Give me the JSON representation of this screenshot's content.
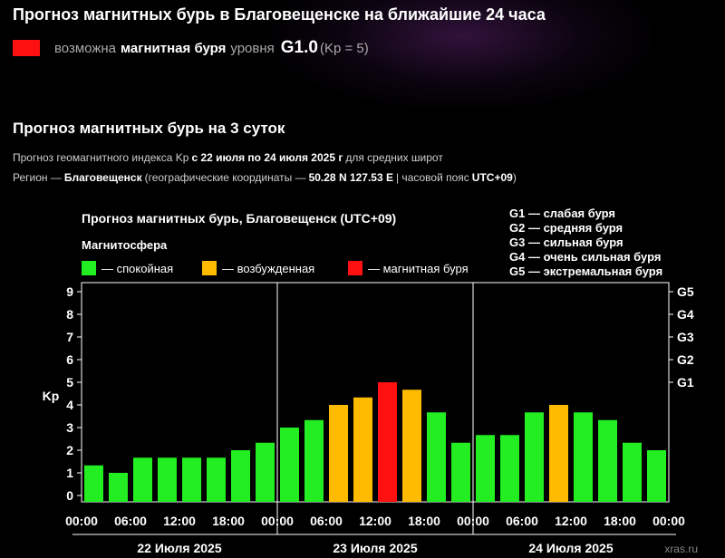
{
  "header": {
    "title": "Прогноз магнитных бурь в Благовещенске на ближайшие 24 часа",
    "alert_color": "#ff1010",
    "alert_prefix": "возможна",
    "alert_bold": "магнитная буря",
    "alert_level_word": "уровня",
    "alert_level": "G1.0",
    "alert_kp": "(Kp = 5)"
  },
  "section": {
    "title": "Прогноз магнитных бурь на 3 суток",
    "line1_prefix": "Прогноз геомагнитного индекса Kp",
    "line1_bold": "с 22 июля по 24 июля 2025 г",
    "line1_suffix": "для средних широт",
    "line2_prefix": "Регион —",
    "line2_region": "Благовещенск",
    "line2_mid": "(географические координаты —",
    "line2_coords": "50.28 N 127.53 E",
    "line2_tz_label": "| часовой пояс",
    "line2_tz": "UTC+09",
    "line2_end": ")"
  },
  "chart_data": {
    "type": "bar",
    "title": "Прогноз магнитных бурь, Благовещенск (UTC+09)",
    "legend_title": "Магнитосфера",
    "legend": [
      {
        "label": "— спокойная",
        "color": "#22ee22"
      },
      {
        "label": "— возбужденная",
        "color": "#ffbb00"
      },
      {
        "label": "— магнитная буря",
        "color": "#ff1111"
      }
    ],
    "g_legend": [
      "G1 — слабая буря",
      "G2 — средняя буря",
      "G3 — сильная буря",
      "G4 — очень сильная буря",
      "G5 — экстремальная буря"
    ],
    "ylabel": "Kp",
    "ylim": [
      0,
      9
    ],
    "y_ticks": [
      "0",
      "1",
      "2",
      "3",
      "4",
      "5",
      "6",
      "7",
      "8",
      "9"
    ],
    "right_ticks": [
      {
        "label": "G1",
        "kp": 5
      },
      {
        "label": "G2",
        "kp": 6
      },
      {
        "label": "G3",
        "kp": 7
      },
      {
        "label": "G4",
        "kp": 8
      },
      {
        "label": "G5",
        "kp": 9
      }
    ],
    "days": [
      "22 Июля 2025",
      "23 Июля 2025",
      "24 Июля 2025"
    ],
    "time_labels": [
      "00:00",
      "06:00",
      "12:00",
      "18:00",
      "00:00",
      "06:00",
      "12:00",
      "18:00",
      "00:00",
      "06:00",
      "12:00",
      "18:00",
      "00:00"
    ],
    "values": [
      1.33,
      1.0,
      1.67,
      1.67,
      1.67,
      1.67,
      2.0,
      2.33,
      3.0,
      3.33,
      4.0,
      4.33,
      5.0,
      4.67,
      3.67,
      2.33,
      2.67,
      2.67,
      3.67,
      4.0,
      3.67,
      3.33,
      2.33,
      2.0
    ],
    "categories": [
      "quiet",
      "quiet",
      "quiet",
      "quiet",
      "quiet",
      "quiet",
      "quiet",
      "quiet",
      "quiet",
      "quiet",
      "active",
      "active",
      "storm",
      "active",
      "quiet",
      "quiet",
      "quiet",
      "quiet",
      "quiet",
      "active",
      "quiet",
      "quiet",
      "quiet",
      "quiet"
    ],
    "colors": {
      "quiet": "#22ee22",
      "active": "#ffbb00",
      "storm": "#ff1111"
    },
    "grid": false
  },
  "watermark": "xras.ru"
}
